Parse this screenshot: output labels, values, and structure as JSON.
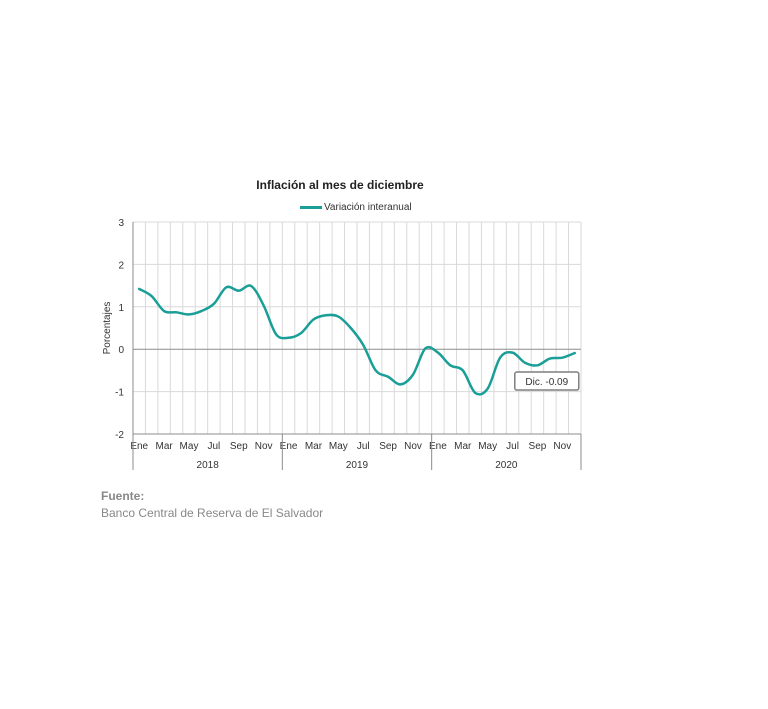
{
  "chart_data": {
    "type": "line",
    "title": "Inflación al mes de diciembre",
    "ylabel": "Porcentajes",
    "xlabel": "",
    "ylim": [
      -2,
      3
    ],
    "yticks": [
      "3",
      "2",
      "1",
      "0",
      "-1",
      "-2"
    ],
    "grid": true,
    "legend_position": "top",
    "x": [
      "2018-01",
      "2018-02",
      "2018-03",
      "2018-04",
      "2018-05",
      "2018-06",
      "2018-07",
      "2018-08",
      "2018-09",
      "2018-10",
      "2018-11",
      "2018-12",
      "2019-01",
      "2019-02",
      "2019-03",
      "2019-04",
      "2019-05",
      "2019-06",
      "2019-07",
      "2019-08",
      "2019-09",
      "2019-10",
      "2019-11",
      "2019-12",
      "2020-01",
      "2020-02",
      "2020-03",
      "2020-04",
      "2020-05",
      "2020-06",
      "2020-07",
      "2020-08",
      "2020-09",
      "2020-10",
      "2020-11",
      "2020-12"
    ],
    "month_tick_labels": [
      "Ene",
      "Mar",
      "May",
      "Jul",
      "Sep",
      "Nov"
    ],
    "years": [
      "2018",
      "2019",
      "2020"
    ],
    "series": [
      {
        "name": "Variación interanual",
        "color": "#1a9e98",
        "values": [
          1.42,
          1.25,
          0.9,
          0.87,
          0.82,
          0.9,
          1.07,
          1.46,
          1.38,
          1.49,
          1.03,
          0.35,
          0.27,
          0.38,
          0.7,
          0.8,
          0.77,
          0.5,
          0.1,
          -0.5,
          -0.65,
          -0.83,
          -0.6,
          0.02,
          -0.08,
          -0.38,
          -0.5,
          -1.03,
          -0.93,
          -0.2,
          -0.08,
          -0.32,
          -0.38,
          -0.22,
          -0.2,
          -0.09
        ]
      }
    ],
    "annotation": {
      "text": "Dic. -0.09",
      "x": "2020-12",
      "y": -0.09
    }
  },
  "source": {
    "heading": "Fuente:",
    "text": "Banco Central de Reserva de El Salvador"
  }
}
